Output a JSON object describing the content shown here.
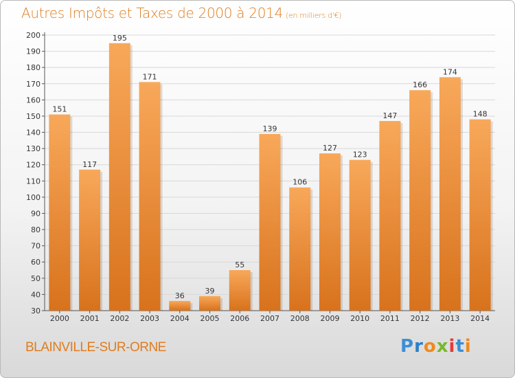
{
  "header": {
    "title": "Autres Impôts et Taxes de 2000 à 2014",
    "unit": "(en milliers d'€)"
  },
  "footer": {
    "commune": "BLAINVILLE-SUR-ORNE",
    "brand": "Proxiti",
    "brand_letters": [
      "P",
      "r",
      "o",
      "x",
      "i",
      "t",
      "i"
    ],
    "brand_colors": [
      "#3a8fd6",
      "#2c7fc7",
      "#f08a1c",
      "#78b82a",
      "#e33b3b",
      "#3a8fd6",
      "#f08a1c"
    ]
  },
  "colors": {
    "title": "#e07c1e",
    "bar_light": "#f8a85a",
    "bar_dark": "#d8721c",
    "grid": "#d8d8d8"
  },
  "chart_data": {
    "type": "bar",
    "title": "Autres Impôts et Taxes de 2000 à 2014",
    "subtitle": "(en milliers d'€)",
    "categories": [
      "2000",
      "2001",
      "2002",
      "2003",
      "2004",
      "2005",
      "2006",
      "2007",
      "2008",
      "2009",
      "2010",
      "2011",
      "2012",
      "2013",
      "2014"
    ],
    "values": [
      151,
      117,
      195,
      171,
      36,
      39,
      55,
      139,
      106,
      127,
      123,
      147,
      166,
      174,
      148
    ],
    "ylim": [
      30,
      200
    ],
    "yticks": [
      30,
      40,
      50,
      60,
      70,
      80,
      90,
      100,
      110,
      120,
      130,
      140,
      150,
      160,
      170,
      180,
      190,
      200
    ],
    "grid": true,
    "data_labels": true
  }
}
